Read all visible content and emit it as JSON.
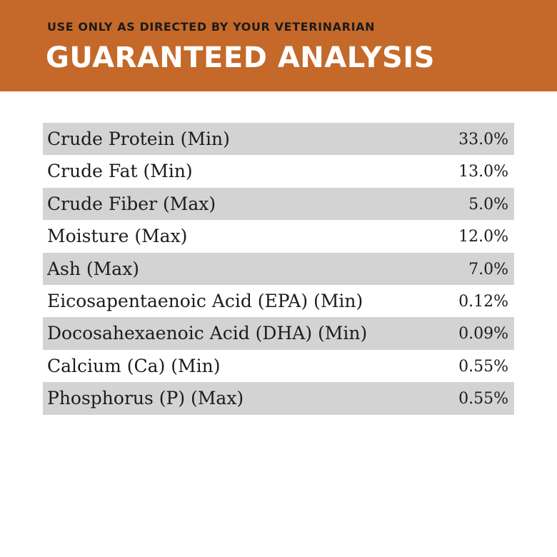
{
  "colors": {
    "header_bg": "#c4692a",
    "row_shade": "#d3d3d3",
    "text": "#1c1c1c"
  },
  "header": {
    "subtitle": "USE ONLY AS DIRECTED BY YOUR VETERINARIAN",
    "title": "GUARANTEED ANALYSIS"
  },
  "analysis": {
    "rows": [
      {
        "label": "Crude Protein (Min)",
        "value": "33.0%"
      },
      {
        "label": "Crude Fat (Min)",
        "value": "13.0%"
      },
      {
        "label": "Crude Fiber (Max)",
        "value": "5.0%"
      },
      {
        "label": "Moisture (Max)",
        "value": "12.0%"
      },
      {
        "label": "Ash (Max)",
        "value": "7.0%"
      },
      {
        "label": "Eicosapentaenoic Acid (EPA) (Min)",
        "value": "0.12%"
      },
      {
        "label": "Docosahexaenoic Acid (DHA) (Min)",
        "value": "0.09%"
      },
      {
        "label": "Calcium (Ca) (Min)",
        "value": "0.55%"
      },
      {
        "label": "Phosphorus (P) (Max)",
        "value": "0.55%"
      }
    ]
  }
}
